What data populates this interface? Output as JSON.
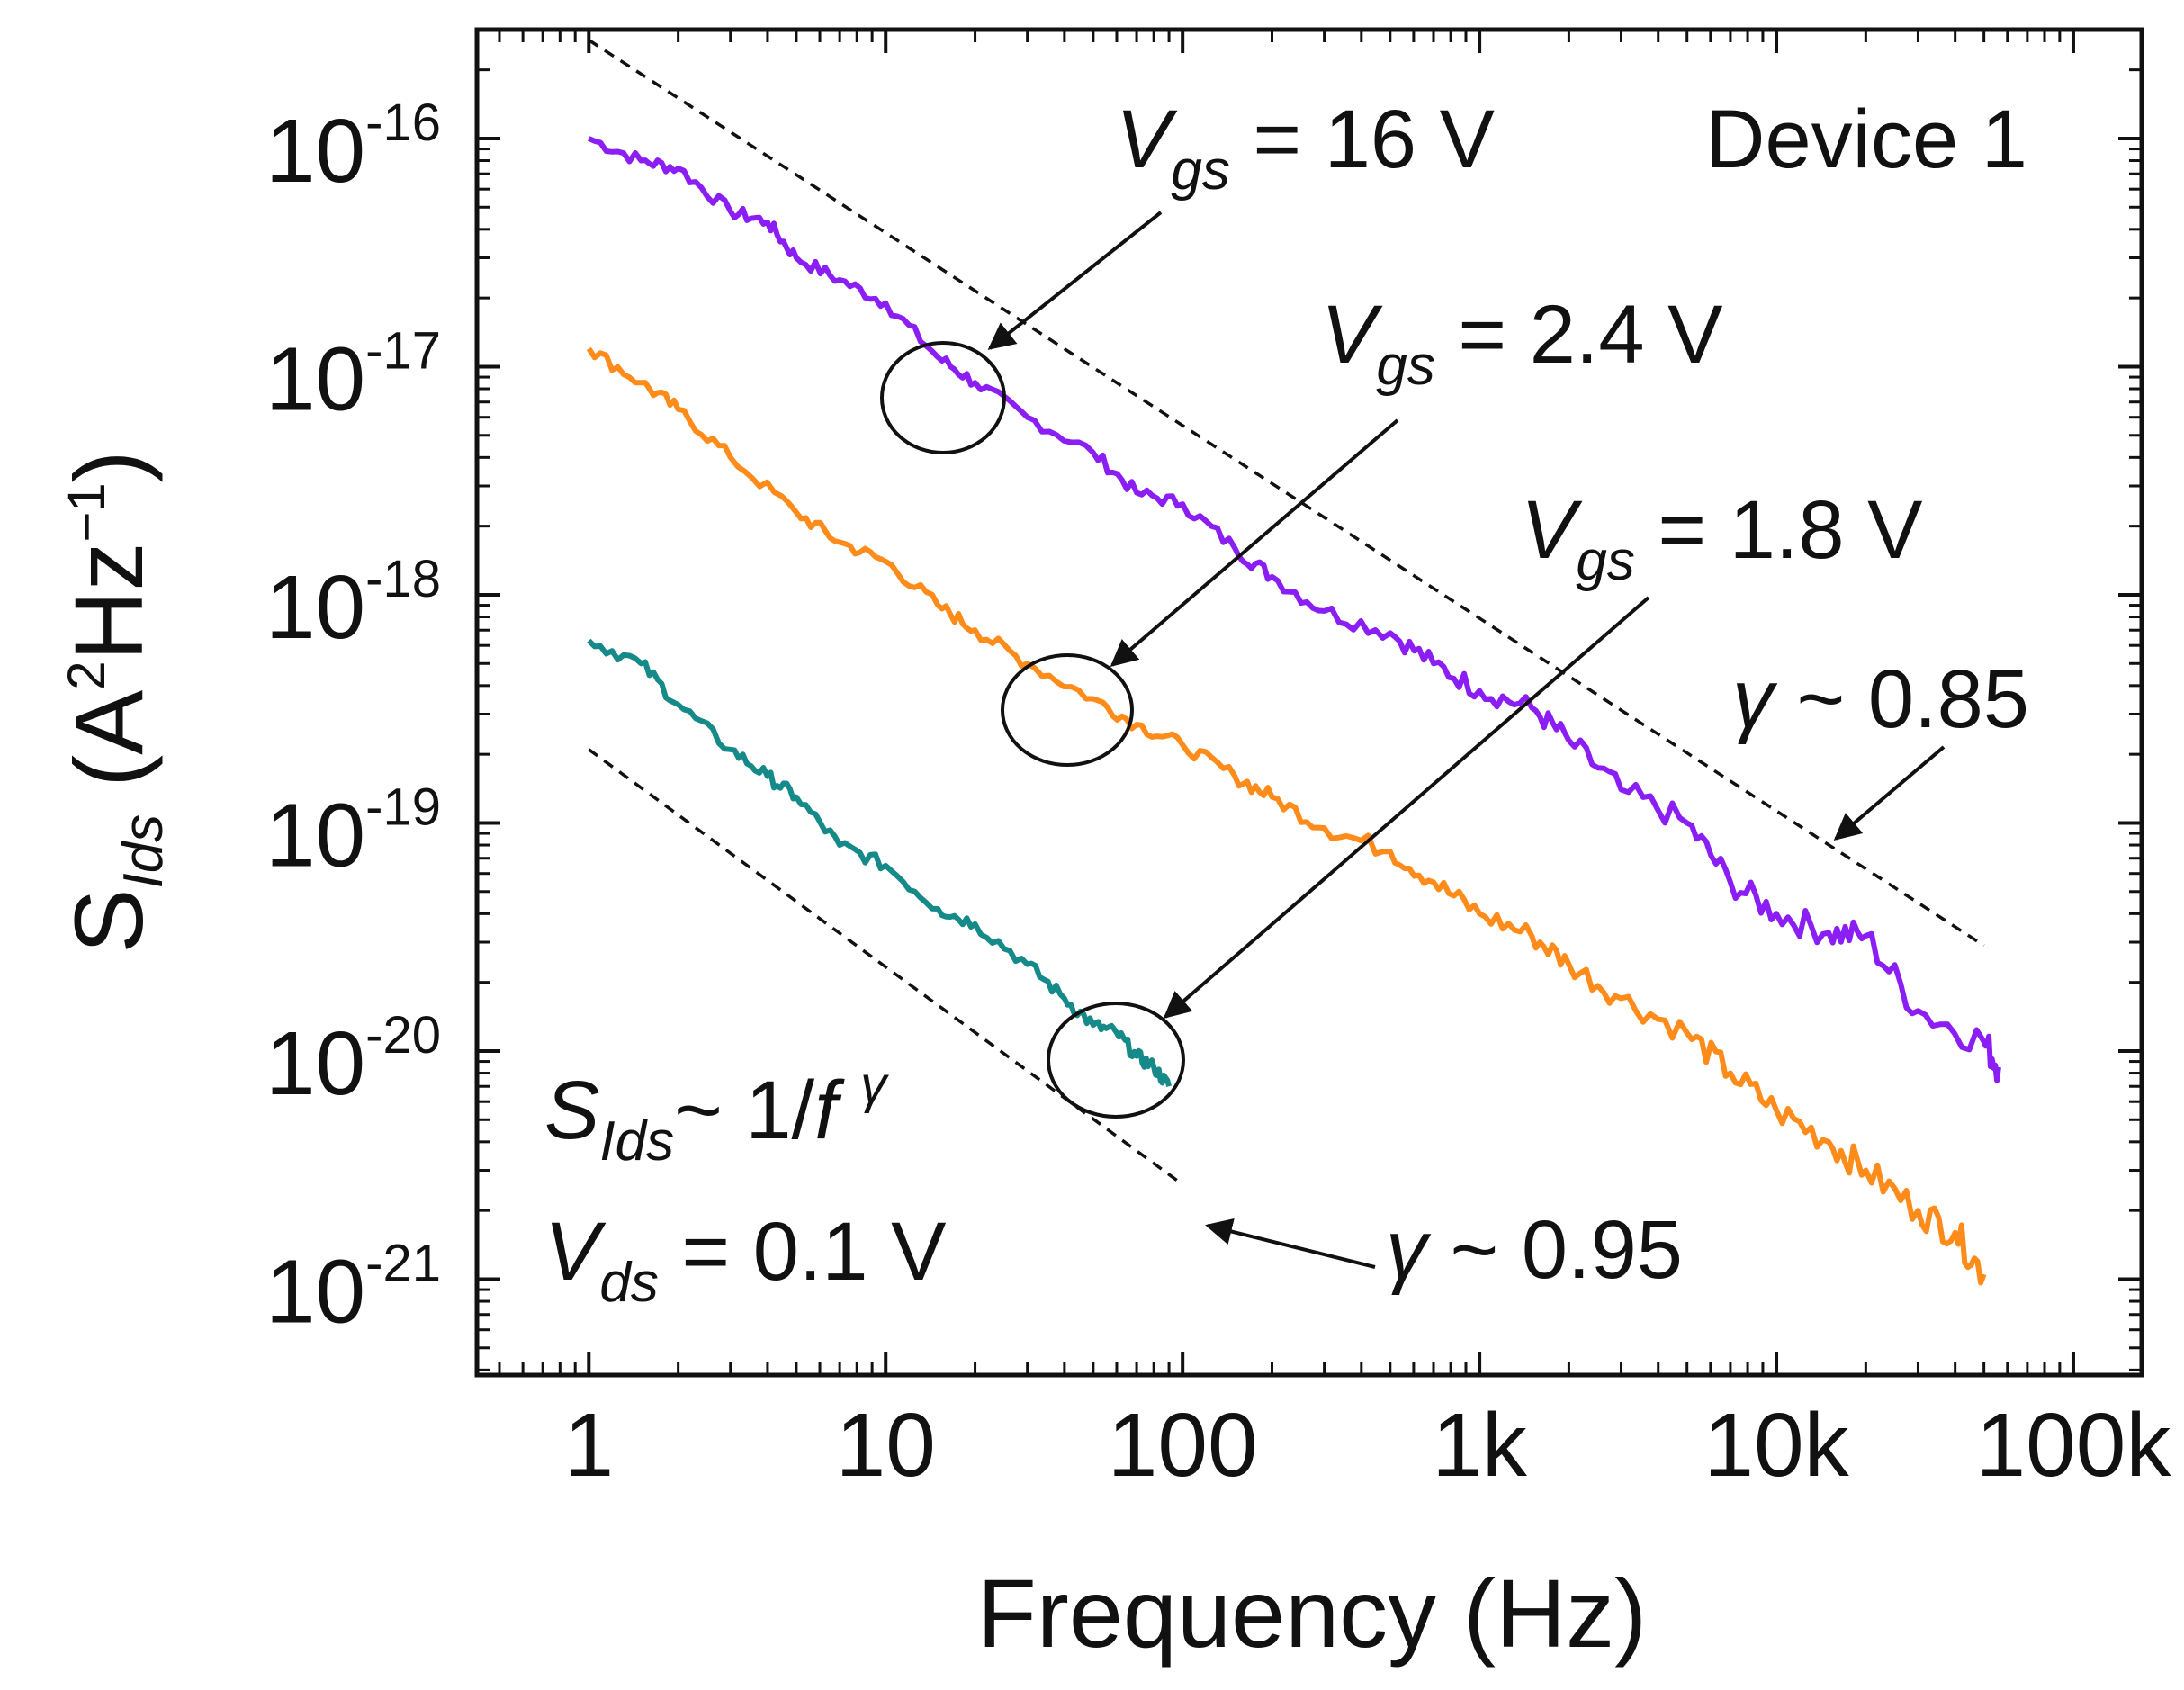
{
  "chart_data": {
    "type": "line",
    "title": "",
    "xlabel": "Frequency (Hz)",
    "ylabel": {
      "base": "S",
      "sub": "Ids",
      "unit_open": " (A",
      "sup1": "2",
      "mid": "Hz",
      "sup2": "−1",
      "unit_close": ")"
    },
    "xscale": "log",
    "yscale": "log",
    "xlim": [
      0.42,
      170000
    ],
    "ylim": [
      3.8e-22,
      3e-16
    ],
    "x_ticks": [
      {
        "value": 1,
        "label": "1"
      },
      {
        "value": 10,
        "label": "10"
      },
      {
        "value": 100,
        "label": "100"
      },
      {
        "value": 1000,
        "label": "1k"
      },
      {
        "value": 10000,
        "label": "10k"
      },
      {
        "value": 100000,
        "label": "100k"
      }
    ],
    "y_ticks": [
      {
        "value": 1e-16,
        "base": "10",
        "exp": "-16"
      },
      {
        "value": 1e-17,
        "base": "10",
        "exp": "-17"
      },
      {
        "value": 1e-18,
        "base": "10",
        "exp": "-18"
      },
      {
        "value": 1e-19,
        "base": "10",
        "exp": "-19"
      },
      {
        "value": 1e-20,
        "base": "10",
        "exp": "-20"
      },
      {
        "value": 1e-21,
        "base": "10",
        "exp": "-21"
      }
    ],
    "series": [
      {
        "name": "Vgs = 16 V",
        "color": "#8B1EF5",
        "x": [
          1,
          1.5,
          2,
          3,
          4,
          5,
          7,
          10,
          15,
          20,
          30,
          50,
          70,
          100,
          150,
          200,
          300,
          500,
          700,
          1000,
          1500,
          2000,
          3000,
          5000,
          7000,
          10000,
          15000,
          20000,
          30000,
          50000,
          56000
        ],
        "y": [
          1e-16,
          8e-17,
          7.4e-17,
          4.8e-17,
          4.3e-17,
          3e-17,
          2.4e-17,
          1.9e-17,
          1.1e-17,
          8.5e-18,
          6e-18,
          4.2e-18,
          2.8e-18,
          2.5e-18,
          1.6e-18,
          1.2e-18,
          8.5e-19,
          6.8e-19,
          5e-19,
          3.8e-19,
          3.2e-19,
          2.3e-19,
          1.4e-19,
          1e-19,
          5.5e-20,
          4e-20,
          3.3e-20,
          3.2e-20,
          1.5e-20,
          1.1e-20,
          8.5e-21
        ]
      },
      {
        "name": "Vgs = 2.4 V",
        "color": "#FF8C1A",
        "x": [
          1,
          1.5,
          2,
          3,
          5,
          7,
          10,
          15,
          20,
          30,
          50,
          70,
          100,
          150,
          200,
          300,
          500,
          700,
          1000,
          1500,
          2000,
          3000,
          5000,
          7000,
          10000,
          15000,
          20000,
          30000,
          40000,
          50000
        ],
        "y": [
          1.2e-17,
          8.5e-18,
          6.5e-18,
          4e-18,
          2.3e-18,
          1.7e-18,
          1.4e-18,
          9e-19,
          7e-19,
          5e-19,
          3.5e-19,
          2.7e-19,
          2.2e-19,
          1.6e-19,
          1.3e-19,
          9.5e-20,
          7.5e-20,
          5.5e-20,
          4e-20,
          3.2e-20,
          2.4e-20,
          1.7e-20,
          1.2e-20,
          8e-21,
          5.5e-21,
          4e-21,
          3e-21,
          2e-21,
          1.6e-21,
          1.05e-21
        ]
      },
      {
        "name": "Vgs = 1.8 V",
        "color": "#158A88",
        "x": [
          1,
          1.5,
          2,
          3,
          4,
          5,
          7,
          10,
          15,
          20,
          30,
          40,
          50,
          60,
          70,
          80,
          90
        ],
        "y": [
          6.3e-19,
          5e-19,
          3.3e-19,
          2.1e-19,
          1.6e-19,
          1.3e-19,
          8e-20,
          6.5e-20,
          4.2e-20,
          3.6e-20,
          2.4e-20,
          1.7e-20,
          1.3e-20,
          1.2e-20,
          9.5e-21,
          8.5e-21,
          7e-21
        ]
      }
    ],
    "reference_lines": [
      {
        "name": "gamma ~ 0.85 fit",
        "gamma": 0.85,
        "x": [
          1,
          50000
        ],
        "y": [
          2.7e-16,
          2.9e-20
        ],
        "style": "dashed"
      },
      {
        "name": "gamma ~ 0.95 fit",
        "gamma": 0.95,
        "x": [
          1,
          100
        ],
        "y": [
          2.1e-19,
          2.6e-21
        ],
        "style": "dashed"
      }
    ],
    "annotations": {
      "device": "Device 1",
      "vgs_16": {
        "var": "V",
        "sub": "gs",
        "rest": " = 16 V"
      },
      "vgs_24": {
        "var": "V",
        "sub": "gs",
        "rest": " = 2.4 V"
      },
      "vgs_18": {
        "var": "V",
        "sub": "gs",
        "rest": " = 1.8 V"
      },
      "gamma_085": {
        "sym": "γ",
        "rest": " ~ 0.85"
      },
      "gamma_095": {
        "sym": "γ",
        "rest": " ~ 0.95"
      },
      "law": {
        "var": "S",
        "sub": "Ids",
        "mid": "~ 1/",
        "f": "f ",
        "sup": "γ"
      },
      "vds": {
        "var": "V",
        "sub": "ds",
        "rest": " = 0.1 V"
      }
    },
    "legend": "none",
    "grid": false
  }
}
